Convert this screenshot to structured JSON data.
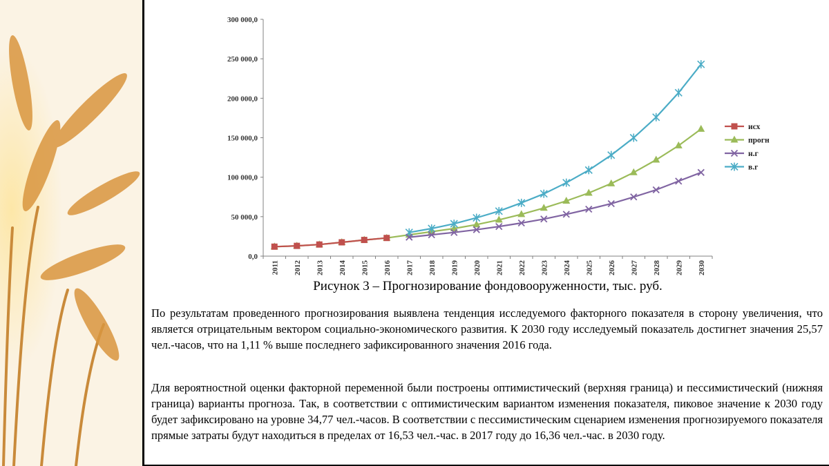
{
  "chart_data": {
    "type": "line",
    "title": "Рисунок 3 – Прогнозирование фондовооруженности, тыс. руб.",
    "categories": [
      "2011",
      "2012",
      "2013",
      "2014",
      "2015",
      "2016",
      "2017",
      "2018",
      "2019",
      "2020",
      "2021",
      "2022",
      "2023",
      "2024",
      "2025",
      "2026",
      "2027",
      "2028",
      "2029",
      "2030"
    ],
    "y_ticks": [
      "0,0",
      "50 000,0",
      "100 000,0",
      "150 000,0",
      "200 000,0",
      "250 000,0",
      "300 000,0"
    ],
    "ylim": [
      0,
      300000
    ],
    "grid": false,
    "legend_position": "right",
    "series": [
      {
        "name": "исх",
        "color": "#c0504d",
        "marker": "square",
        "values": [
          12000,
          13000,
          14700,
          17500,
          20500,
          23000,
          null,
          null,
          null,
          null,
          null,
          null,
          null,
          null,
          null,
          null,
          null,
          null,
          null,
          null
        ]
      },
      {
        "name": "прогн",
        "color": "#9bbb59",
        "marker": "triangle",
        "values": [
          12000,
          13000,
          14700,
          17500,
          20500,
          23000,
          27000,
          31000,
          35000,
          40000,
          46000,
          53000,
          61000,
          70000,
          80000,
          92000,
          106000,
          122000,
          140000,
          161000
        ]
      },
      {
        "name": "н.г",
        "color": "#8064a2",
        "marker": "x",
        "values": [
          null,
          null,
          null,
          null,
          null,
          null,
          24000,
          27000,
          30000,
          33500,
          37500,
          42000,
          47000,
          53000,
          59500,
          66500,
          75000,
          84000,
          95000,
          106000
        ]
      },
      {
        "name": "в.г",
        "color": "#4bacc6",
        "marker": "star",
        "values": [
          null,
          null,
          null,
          null,
          null,
          null,
          30000,
          35000,
          41000,
          48500,
          57000,
          67500,
          79000,
          93000,
          109000,
          128000,
          150000,
          176000,
          207000,
          243000
        ]
      }
    ]
  },
  "text": {
    "p1": "По результатам проведенного прогнозирования выявлена тенденция  исследуемого факторного показателя в сторону увеличения, что является отрицательным вектором социально-экономического развития. К 2030 году исследуемый показатель достигнет значения 25,57 чел.-часов, что на 1,11 % выше последнего зафиксированного значения 2016 года.",
    "p2": "Для вероятностной оценки факторной переменной были построены оптимистический (верхняя граница) и пессимистический (нижняя граница) варианты прогноза. Так, в соответствии с оптимистическим вариантом изменения показателя, пиковое значение к 2030 году будет зафиксировано на уровне 34,77 чел.-часов.  В соответствии с пессимистическим сценарием изменения прогнозируемого показателя прямые затраты будут находиться в пределах от 16,53 чел.-час. в 2017 году до 16,36 чел.-час. в 2030 году."
  }
}
